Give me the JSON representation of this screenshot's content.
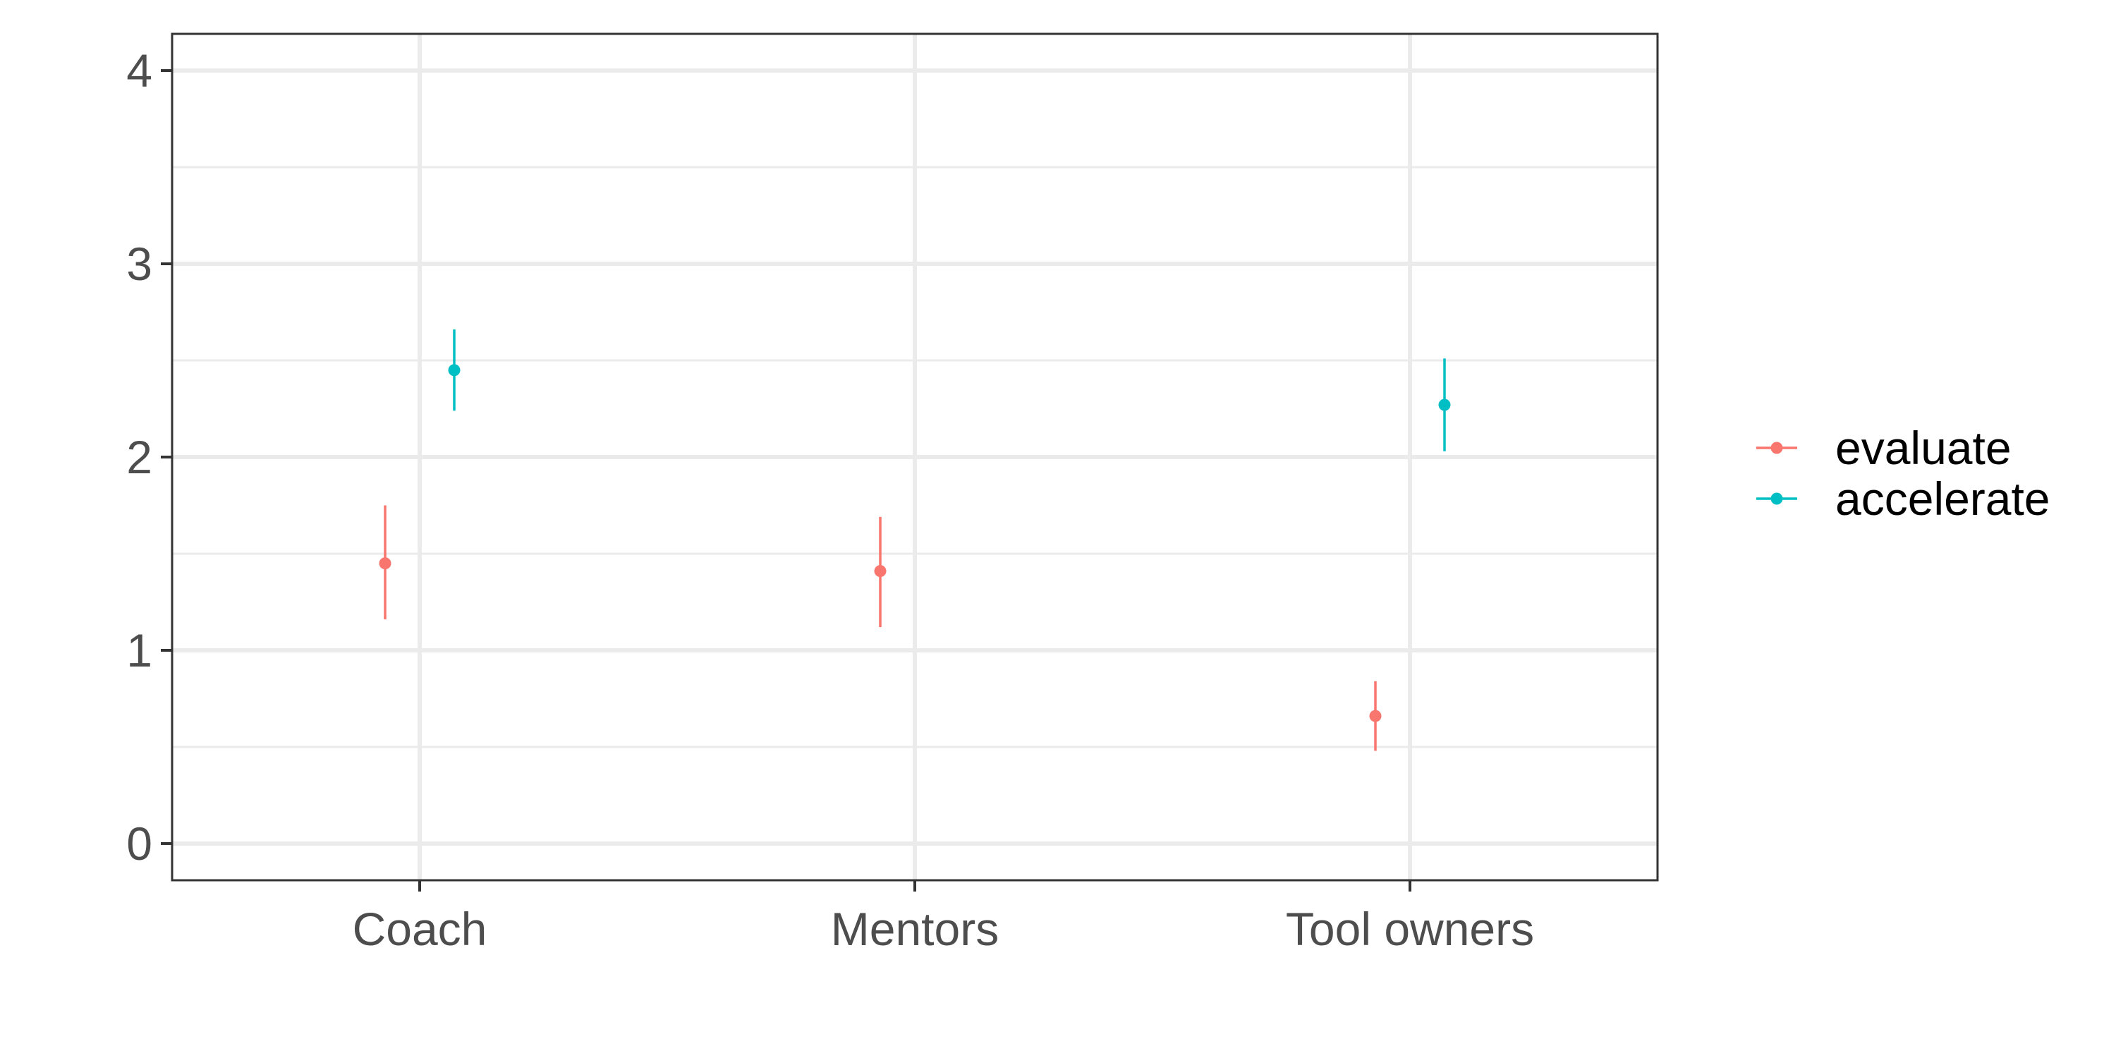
{
  "chart_data": {
    "type": "scatter",
    "subtype": "point-with-errorbars",
    "categories": [
      "Coach",
      "Mentors",
      "Tool owners"
    ],
    "xlabel": "",
    "ylabel": "",
    "ylim": [
      -0.19,
      4.19
    ],
    "yticks": [
      "0",
      "1",
      "2",
      "3",
      "4"
    ],
    "grid": true,
    "legend_position": "right",
    "series": [
      {
        "name": "evaluate",
        "color": "#F8766D",
        "points": [
          {
            "category": "Coach",
            "y": 1.45,
            "lower": 1.16,
            "upper": 1.75
          },
          {
            "category": "Mentors",
            "y": 1.41,
            "lower": 1.12,
            "upper": 1.69
          },
          {
            "category": "Tool owners",
            "y": 0.66,
            "lower": 0.48,
            "upper": 0.84
          }
        ]
      },
      {
        "name": "accelerate",
        "color": "#00BFC4",
        "points": [
          {
            "category": "Coach",
            "y": 2.45,
            "lower": 2.24,
            "upper": 2.66
          },
          {
            "category": "Tool owners",
            "y": 2.27,
            "lower": 2.03,
            "upper": 2.51
          }
        ]
      }
    ]
  }
}
